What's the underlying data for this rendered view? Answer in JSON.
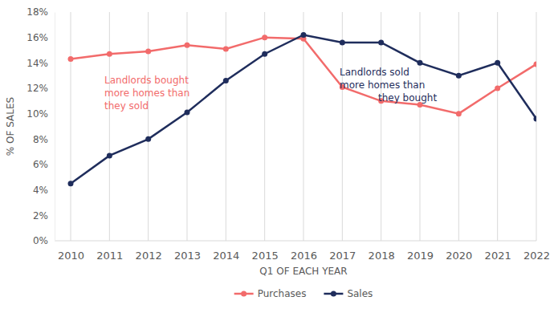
{
  "chart_data": {
    "type": "line",
    "x_label": "Q1 OF EACH YEAR",
    "y_label": "% OF SALES",
    "categories": [
      "2010",
      "2011",
      "2012",
      "2013",
      "2014",
      "2015",
      "2016",
      "2017",
      "2018",
      "2019",
      "2020",
      "2021",
      "2022"
    ],
    "series": [
      {
        "name": "Purchases",
        "color": "#f26b6b",
        "marker": "circle",
        "line_style": "solid",
        "values": [
          14.3,
          14.7,
          14.9,
          15.4,
          15.1,
          16.0,
          15.9,
          12.1,
          11.0,
          10.7,
          10.0,
          12.0,
          13.9
        ]
      },
      {
        "name": "Sales",
        "color": "#1f2d5c",
        "marker": "circle",
        "line_style": "solid",
        "values": [
          4.5,
          6.7,
          8.0,
          10.1,
          12.6,
          14.7,
          16.2,
          15.6,
          15.6,
          14.0,
          13.0,
          14.0,
          9.6
        ]
      }
    ],
    "ylim": [
      0,
      18
    ],
    "yticks": [
      {
        "value": 0,
        "label": "0%"
      },
      {
        "value": 2,
        "label": "2%"
      },
      {
        "value": 4,
        "label": "4%"
      },
      {
        "value": 6,
        "label": "6%"
      },
      {
        "value": 8,
        "label": "8%"
      },
      {
        "value": 10,
        "label": "10%"
      },
      {
        "value": 12,
        "label": "12%"
      },
      {
        "value": 14,
        "label": "14%"
      },
      {
        "value": 16,
        "label": "16%"
      },
      {
        "value": 18,
        "label": "18%"
      }
    ],
    "grid": true,
    "legend": "bottom",
    "annotations": [
      {
        "text": [
          "Landlords bought",
          "more homes than",
          "they sold"
        ],
        "color": "#f26b6b"
      },
      {
        "text": [
          "Landlords sold",
          "more homes than",
          "they bought"
        ],
        "color": "#1f2d5c"
      }
    ]
  }
}
